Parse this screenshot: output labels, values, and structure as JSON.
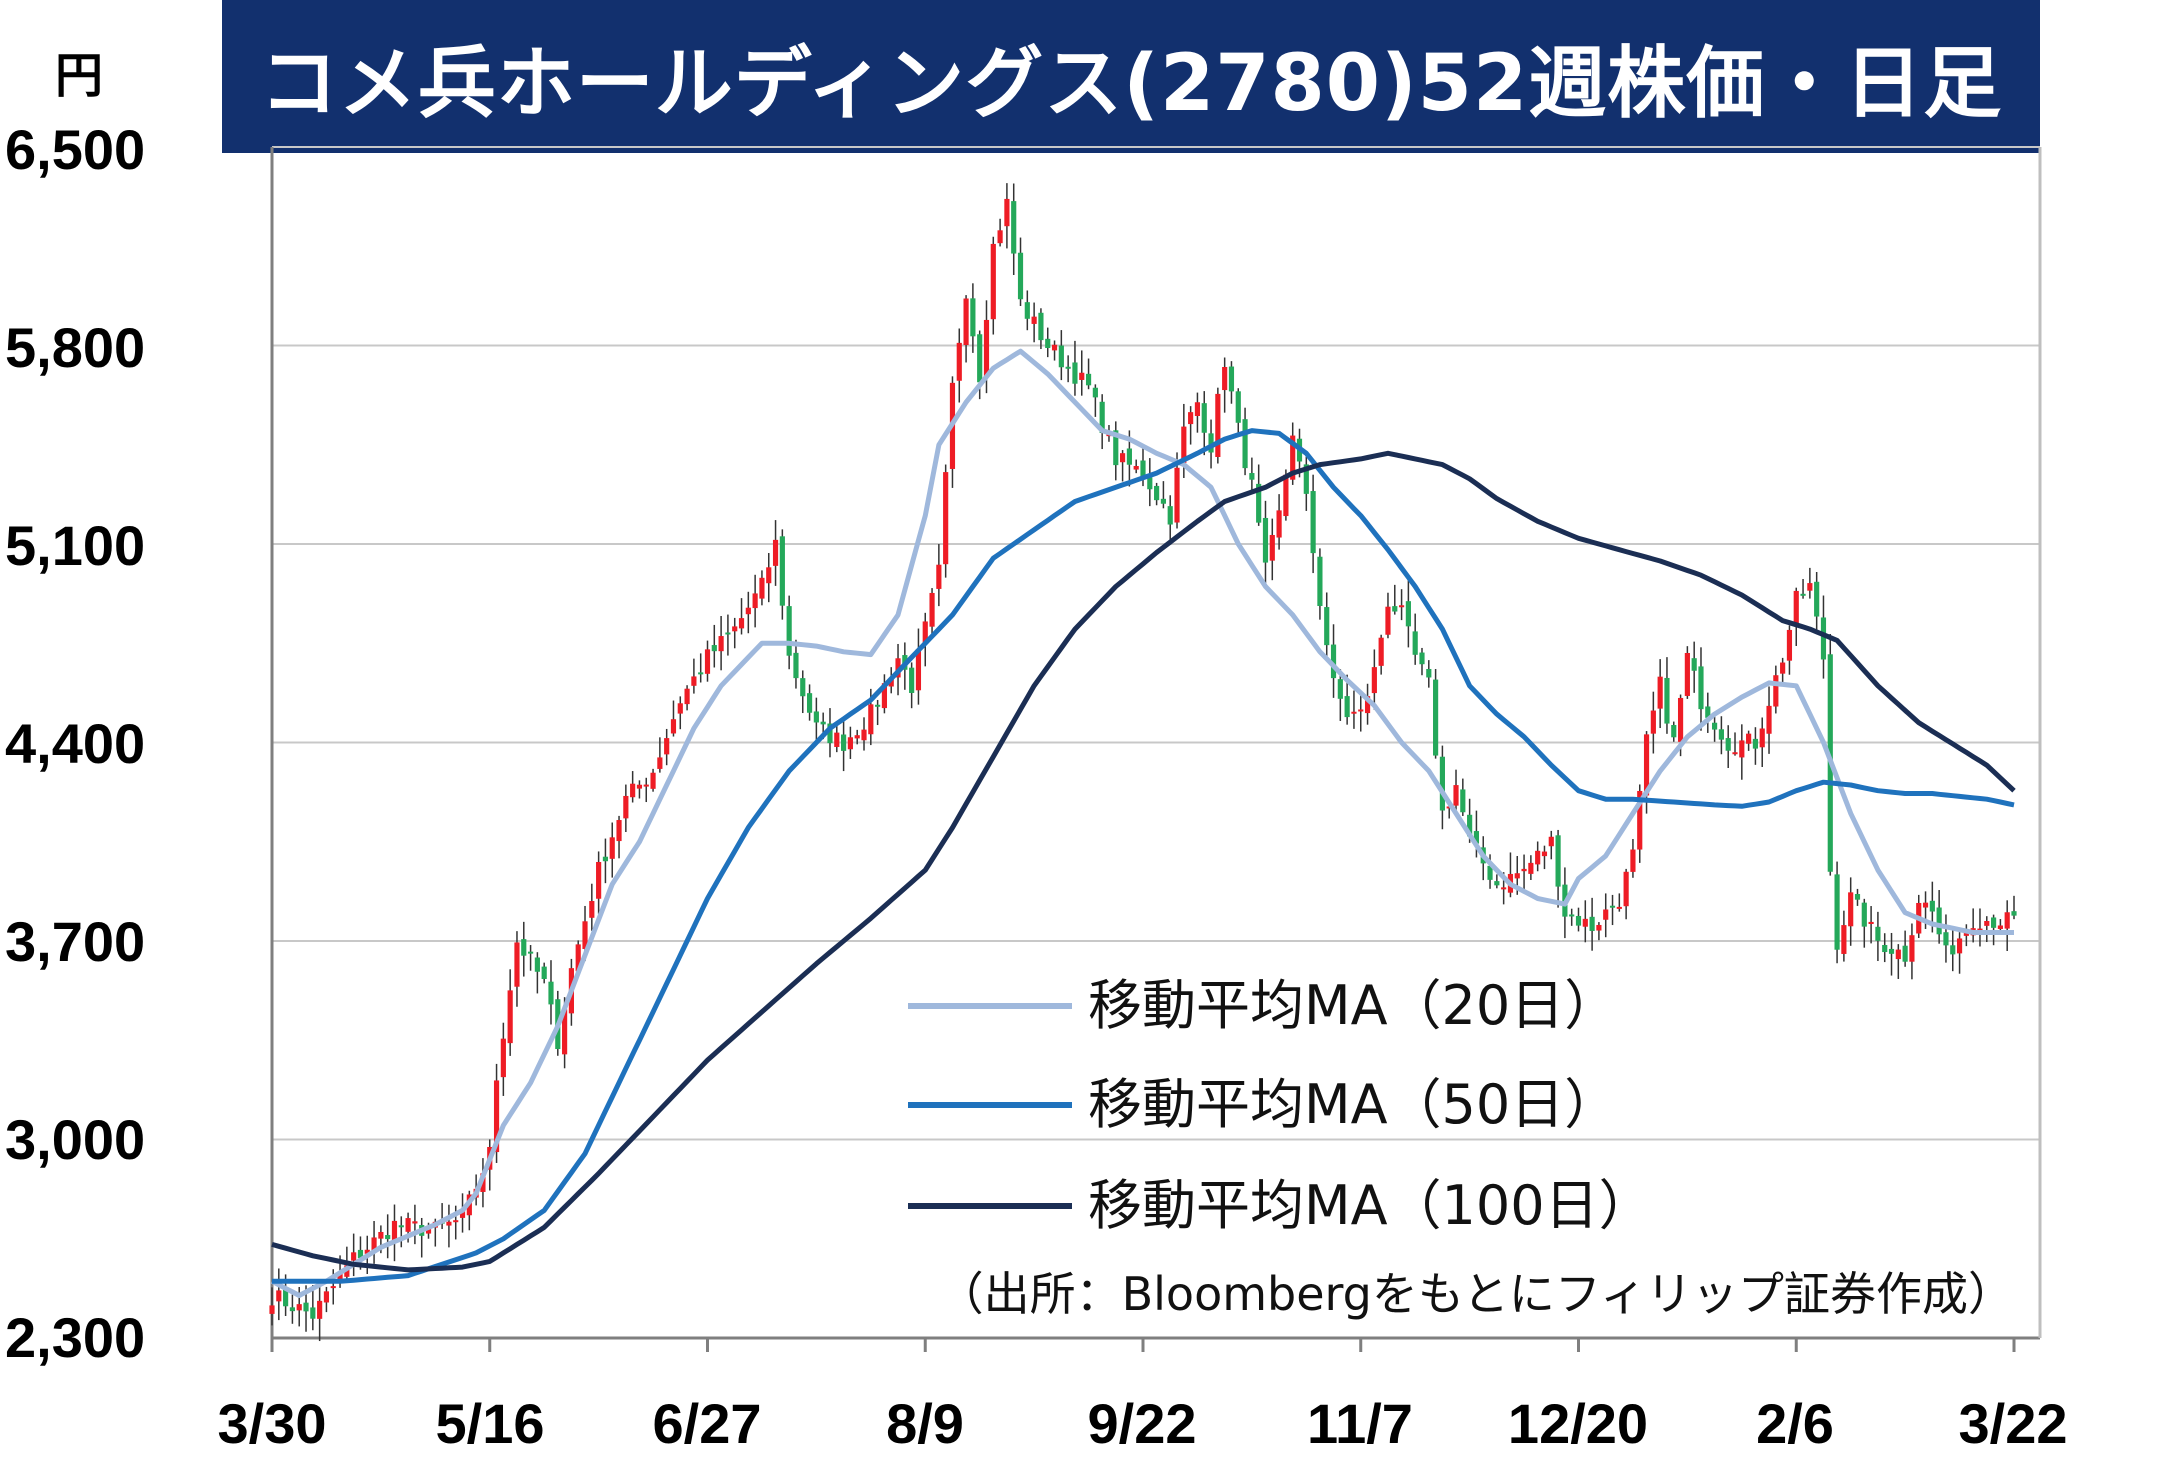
{
  "header": {
    "title": "コメ兵ホールディングス(2780)52週株価・日足",
    "unit": "円"
  },
  "source": "（出所：Bloombergをもとにフィリップ証券作成）",
  "legend": [
    {
      "label": "移動平均MA（20日）",
      "color": "#9fb8dc"
    },
    {
      "label": "移動平均MA（50日）",
      "color": "#1f72bd"
    },
    {
      "label": "移動平均MA（100日）",
      "color": "#1b2e54"
    }
  ],
  "colors": {
    "up": "#ee1c25",
    "down": "#24a85a",
    "grid": "#c8c8c8",
    "axis": "#7f7f7f"
  },
  "chart_data": {
    "type": "candlestick",
    "title": "コメ兵ホールディングス(2780)52週株価・日足",
    "ylabel": "円",
    "ylim": [
      2300,
      6500
    ],
    "y_ticks": [
      2300,
      3000,
      3700,
      4400,
      5100,
      5800,
      6500
    ],
    "y_tick_labels": [
      "2,300",
      "3,000",
      "3,700",
      "4,400",
      "5,100",
      "5,800",
      "6,500"
    ],
    "x_ticks": [
      {
        "label": "3/30",
        "index": 0
      },
      {
        "label": "5/16",
        "index": 32
      },
      {
        "label": "6/27",
        "index": 64
      },
      {
        "label": "8/9",
        "index": 96
      },
      {
        "label": "9/22",
        "index": 128
      },
      {
        "label": "11/7",
        "index": 160
      },
      {
        "label": "12/20",
        "index": 192
      },
      {
        "label": "2/6",
        "index": 224
      },
      {
        "label": "3/22",
        "index": 256
      }
    ],
    "grid": true,
    "legend_position": "bottom-right",
    "close_keys": [
      [
        0,
        2450
      ],
      [
        6,
        2380
      ],
      [
        12,
        2580
      ],
      [
        18,
        2700
      ],
      [
        24,
        2680
      ],
      [
        28,
        2720
      ],
      [
        32,
        2950
      ],
      [
        33,
        3220
      ],
      [
        36,
        3700
      ],
      [
        40,
        3550
      ],
      [
        42,
        3350
      ],
      [
        44,
        3600
      ],
      [
        48,
        3950
      ],
      [
        52,
        4200
      ],
      [
        56,
        4300
      ],
      [
        60,
        4550
      ],
      [
        64,
        4700
      ],
      [
        68,
        4800
      ],
      [
        72,
        4950
      ],
      [
        74,
        5100
      ],
      [
        76,
        4700
      ],
      [
        80,
        4450
      ],
      [
        84,
        4400
      ],
      [
        88,
        4500
      ],
      [
        92,
        4700
      ],
      [
        94,
        4600
      ],
      [
        96,
        4800
      ],
      [
        98,
        5000
      ],
      [
        100,
        5650
      ],
      [
        102,
        6000
      ],
      [
        104,
        5700
      ],
      [
        106,
        6150
      ],
      [
        108,
        6300
      ],
      [
        110,
        5950
      ],
      [
        114,
        5800
      ],
      [
        118,
        5700
      ],
      [
        120,
        5650
      ],
      [
        124,
        5400
      ],
      [
        128,
        5350
      ],
      [
        132,
        5200
      ],
      [
        134,
        5500
      ],
      [
        136,
        5600
      ],
      [
        138,
        5450
      ],
      [
        140,
        5750
      ],
      [
        142,
        5500
      ],
      [
        144,
        5300
      ],
      [
        146,
        5000
      ],
      [
        148,
        5200
      ],
      [
        150,
        5500
      ],
      [
        152,
        5250
      ],
      [
        154,
        4900
      ],
      [
        156,
        4600
      ],
      [
        158,
        4500
      ],
      [
        160,
        4500
      ],
      [
        162,
        4650
      ],
      [
        164,
        4900
      ],
      [
        166,
        4850
      ],
      [
        168,
        4700
      ],
      [
        170,
        4600
      ],
      [
        172,
        4150
      ],
      [
        174,
        4250
      ],
      [
        176,
        4050
      ],
      [
        180,
        3900
      ],
      [
        184,
        3950
      ],
      [
        188,
        4050
      ],
      [
        190,
        3800
      ],
      [
        194,
        3750
      ],
      [
        198,
        3850
      ],
      [
        200,
        4000
      ],
      [
        202,
        4400
      ],
      [
        204,
        4600
      ],
      [
        206,
        4400
      ],
      [
        208,
        4700
      ],
      [
        210,
        4550
      ],
      [
        214,
        4400
      ],
      [
        218,
        4400
      ],
      [
        222,
        4700
      ],
      [
        224,
        4900
      ],
      [
        226,
        4950
      ],
      [
        228,
        4700
      ],
      [
        229,
        3950
      ],
      [
        230,
        3700
      ],
      [
        232,
        3850
      ],
      [
        236,
        3700
      ],
      [
        240,
        3650
      ],
      [
        242,
        3850
      ],
      [
        244,
        3800
      ],
      [
        246,
        3650
      ],
      [
        250,
        3780
      ],
      [
        256,
        3770
      ]
    ],
    "series": [
      {
        "name": "移動平均MA（20日）",
        "keys": [
          [
            0,
            2500
          ],
          [
            4,
            2450
          ],
          [
            8,
            2500
          ],
          [
            12,
            2560
          ],
          [
            16,
            2620
          ],
          [
            20,
            2660
          ],
          [
            24,
            2700
          ],
          [
            28,
            2750
          ],
          [
            30,
            2810
          ],
          [
            34,
            3050
          ],
          [
            38,
            3200
          ],
          [
            42,
            3400
          ],
          [
            46,
            3650
          ],
          [
            50,
            3900
          ],
          [
            54,
            4050
          ],
          [
            58,
            4250
          ],
          [
            62,
            4450
          ],
          [
            66,
            4600
          ],
          [
            70,
            4700
          ],
          [
            72,
            4750
          ],
          [
            76,
            4750
          ],
          [
            80,
            4740
          ],
          [
            84,
            4720
          ],
          [
            88,
            4710
          ],
          [
            92,
            4850
          ],
          [
            96,
            5200
          ],
          [
            98,
            5450
          ],
          [
            102,
            5600
          ],
          [
            106,
            5720
          ],
          [
            110,
            5780
          ],
          [
            114,
            5700
          ],
          [
            118,
            5600
          ],
          [
            122,
            5500
          ],
          [
            126,
            5470
          ],
          [
            130,
            5420
          ],
          [
            134,
            5380
          ],
          [
            138,
            5300
          ],
          [
            142,
            5100
          ],
          [
            146,
            4950
          ],
          [
            150,
            4850
          ],
          [
            154,
            4720
          ],
          [
            158,
            4620
          ],
          [
            162,
            4530
          ],
          [
            166,
            4400
          ],
          [
            170,
            4300
          ],
          [
            174,
            4150
          ],
          [
            178,
            4000
          ],
          [
            182,
            3900
          ],
          [
            186,
            3850
          ],
          [
            190,
            3830
          ],
          [
            192,
            3920
          ],
          [
            196,
            4000
          ],
          [
            200,
            4150
          ],
          [
            204,
            4300
          ],
          [
            208,
            4420
          ],
          [
            212,
            4500
          ],
          [
            216,
            4560
          ],
          [
            220,
            4610
          ],
          [
            224,
            4600
          ],
          [
            228,
            4400
          ],
          [
            232,
            4150
          ],
          [
            236,
            3950
          ],
          [
            240,
            3800
          ],
          [
            244,
            3760
          ],
          [
            250,
            3730
          ],
          [
            256,
            3730
          ]
        ]
      },
      {
        "name": "移動平均MA（50日）",
        "keys": [
          [
            0,
            2500
          ],
          [
            10,
            2500
          ],
          [
            20,
            2520
          ],
          [
            30,
            2600
          ],
          [
            34,
            2650
          ],
          [
            40,
            2750
          ],
          [
            46,
            2950
          ],
          [
            52,
            3250
          ],
          [
            58,
            3550
          ],
          [
            64,
            3850
          ],
          [
            70,
            4100
          ],
          [
            76,
            4300
          ],
          [
            82,
            4450
          ],
          [
            88,
            4550
          ],
          [
            94,
            4700
          ],
          [
            100,
            4850
          ],
          [
            106,
            5050
          ],
          [
            112,
            5150
          ],
          [
            118,
            5250
          ],
          [
            124,
            5300
          ],
          [
            130,
            5350
          ],
          [
            136,
            5420
          ],
          [
            140,
            5470
          ],
          [
            144,
            5500
          ],
          [
            148,
            5490
          ],
          [
            152,
            5420
          ],
          [
            156,
            5300
          ],
          [
            160,
            5200
          ],
          [
            164,
            5080
          ],
          [
            168,
            4950
          ],
          [
            172,
            4800
          ],
          [
            176,
            4600
          ],
          [
            180,
            4500
          ],
          [
            184,
            4420
          ],
          [
            188,
            4320
          ],
          [
            192,
            4230
          ],
          [
            196,
            4200
          ],
          [
            200,
            4200
          ],
          [
            206,
            4190
          ],
          [
            212,
            4180
          ],
          [
            216,
            4175
          ],
          [
            220,
            4190
          ],
          [
            224,
            4230
          ],
          [
            228,
            4260
          ],
          [
            232,
            4250
          ],
          [
            236,
            4230
          ],
          [
            240,
            4220
          ],
          [
            244,
            4220
          ],
          [
            248,
            4210
          ],
          [
            252,
            4200
          ],
          [
            256,
            4180
          ]
        ]
      },
      {
        "name": "移動平均MA（100日）",
        "keys": [
          [
            0,
            2630
          ],
          [
            6,
            2590
          ],
          [
            12,
            2560
          ],
          [
            20,
            2540
          ],
          [
            28,
            2550
          ],
          [
            32,
            2570
          ],
          [
            40,
            2690
          ],
          [
            48,
            2880
          ],
          [
            56,
            3080
          ],
          [
            64,
            3280
          ],
          [
            72,
            3450
          ],
          [
            80,
            3620
          ],
          [
            88,
            3780
          ],
          [
            96,
            3950
          ],
          [
            100,
            4100
          ],
          [
            106,
            4350
          ],
          [
            112,
            4600
          ],
          [
            118,
            4800
          ],
          [
            124,
            4950
          ],
          [
            130,
            5070
          ],
          [
            136,
            5180
          ],
          [
            140,
            5250
          ],
          [
            146,
            5300
          ],
          [
            150,
            5350
          ],
          [
            154,
            5380
          ],
          [
            160,
            5400
          ],
          [
            164,
            5420
          ],
          [
            168,
            5400
          ],
          [
            172,
            5380
          ],
          [
            176,
            5330
          ],
          [
            180,
            5260
          ],
          [
            186,
            5180
          ],
          [
            192,
            5120
          ],
          [
            198,
            5080
          ],
          [
            204,
            5040
          ],
          [
            210,
            4990
          ],
          [
            216,
            4920
          ],
          [
            222,
            4830
          ],
          [
            226,
            4800
          ],
          [
            230,
            4760
          ],
          [
            236,
            4600
          ],
          [
            242,
            4470
          ],
          [
            248,
            4380
          ],
          [
            252,
            4320
          ],
          [
            256,
            4230
          ]
        ]
      }
    ]
  }
}
